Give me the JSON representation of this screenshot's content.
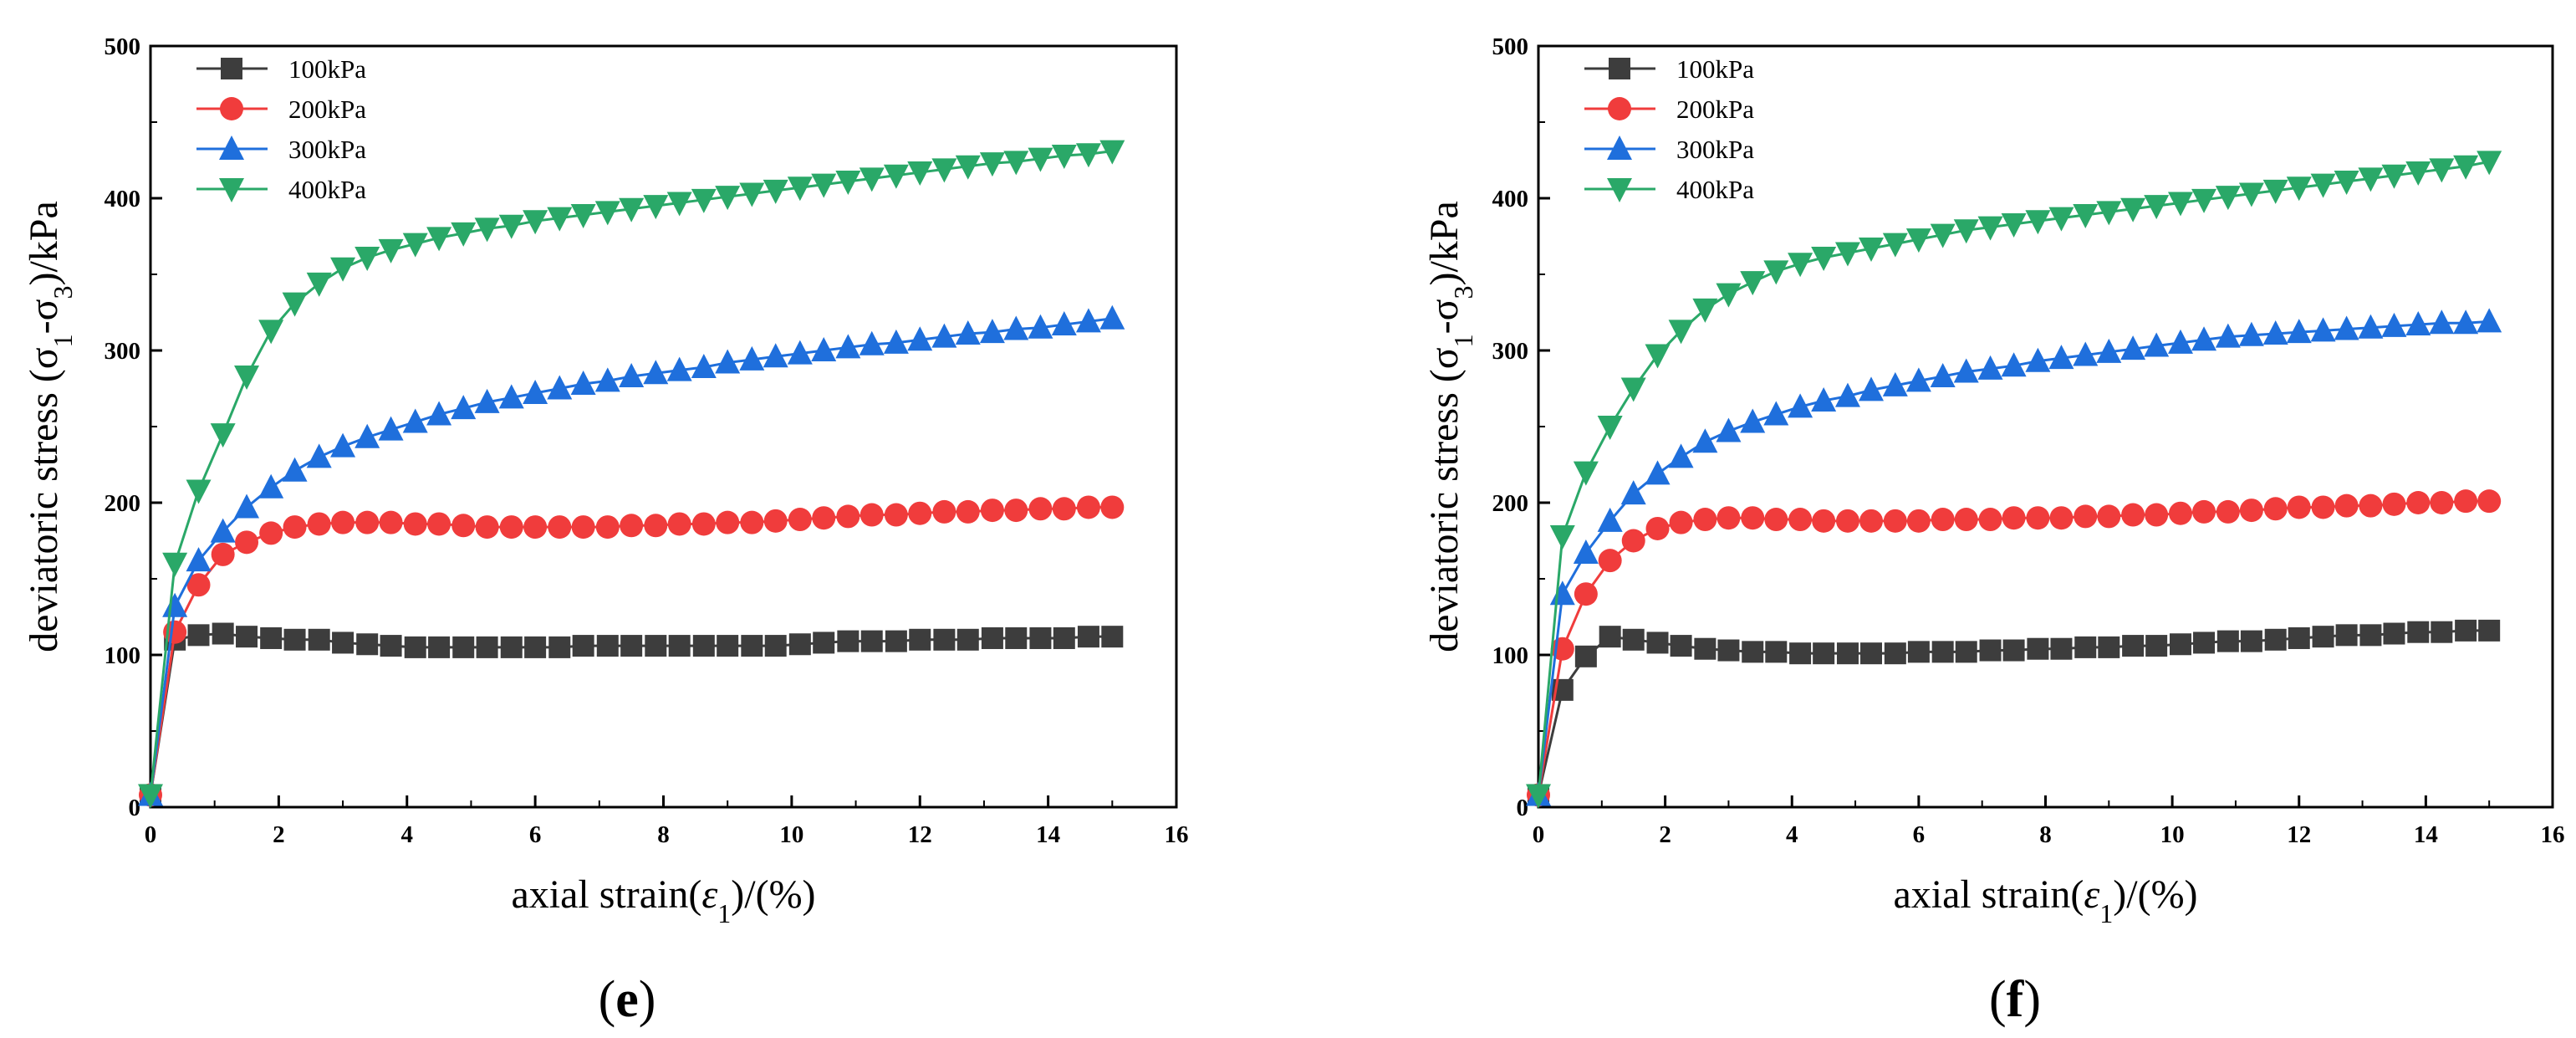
{
  "figure": {
    "series_styles": [
      {
        "color": "#3d3d3d",
        "marker": "square"
      },
      {
        "color": "#f03c3c",
        "marker": "circle"
      },
      {
        "color": "#1f6fdc",
        "marker": "triangle-up"
      },
      {
        "color": "#2aa868",
        "marker": "triangle-down"
      }
    ]
  },
  "chart_data": [
    {
      "type": "line",
      "panel_label": {
        "open": "(",
        "letter": "e",
        "close": ")"
      },
      "xlabel": {
        "prefix": "axial strain(",
        "symbol": "ε",
        "sub": "1",
        "suffix": ")/(%)"
      },
      "ylabel": {
        "prefix": "deviatoric stress (σ",
        "sub1": "1",
        "mid": "-σ",
        "sub2": "3",
        "suffix": ")/kPa"
      },
      "xlim": [
        0,
        16
      ],
      "ylim": [
        0,
        500
      ],
      "xticks": [
        0,
        2,
        4,
        6,
        8,
        10,
        12,
        14,
        16
      ],
      "yticks": [
        0,
        100,
        200,
        300,
        400,
        500
      ],
      "legend_position": "top-left",
      "series": [
        {
          "name": "100kPa",
          "x": [
            0,
            0.38,
            0.75,
            1.13,
            1.5,
            1.88,
            2.25,
            2.63,
            3,
            3.38,
            3.75,
            4.13,
            4.5,
            4.88,
            5.25,
            5.63,
            6,
            6.38,
            6.75,
            7.13,
            7.5,
            7.88,
            8.25,
            8.63,
            9,
            9.38,
            9.75,
            10.13,
            10.5,
            10.88,
            11.25,
            11.63,
            12,
            12.38,
            12.75,
            13.13,
            13.5,
            13.88,
            14.25,
            14.63,
            15
          ],
          "y": [
            8,
            110,
            113,
            114,
            112,
            111,
            110,
            110,
            108,
            107,
            106,
            105,
            105,
            105,
            105,
            105,
            105,
            105,
            106,
            106,
            106,
            106,
            106,
            106,
            106,
            106,
            106,
            107,
            108,
            109,
            109,
            109,
            110,
            110,
            110,
            111,
            111,
            111,
            111,
            112,
            112
          ]
        },
        {
          "name": "200kPa",
          "x": [
            0,
            0.38,
            0.75,
            1.13,
            1.5,
            1.88,
            2.25,
            2.63,
            3,
            3.38,
            3.75,
            4.13,
            4.5,
            4.88,
            5.25,
            5.63,
            6,
            6.38,
            6.75,
            7.13,
            7.5,
            7.88,
            8.25,
            8.63,
            9,
            9.38,
            9.75,
            10.13,
            10.5,
            10.88,
            11.25,
            11.63,
            12,
            12.38,
            12.75,
            13.13,
            13.5,
            13.88,
            14.25,
            14.63,
            15
          ],
          "y": [
            8,
            115,
            146,
            166,
            174,
            180,
            184,
            186,
            187,
            187,
            187,
            186,
            186,
            185,
            184,
            184,
            184,
            184,
            184,
            184,
            185,
            185,
            186,
            186,
            187,
            187,
            188,
            189,
            190,
            191,
            192,
            192,
            193,
            194,
            194,
            195,
            195,
            196,
            196,
            197,
            197
          ]
        },
        {
          "name": "300kPa",
          "x": [
            0,
            0.38,
            0.75,
            1.13,
            1.5,
            1.88,
            2.25,
            2.63,
            3,
            3.38,
            3.75,
            4.13,
            4.5,
            4.88,
            5.25,
            5.63,
            6,
            6.38,
            6.75,
            7.13,
            7.5,
            7.88,
            8.25,
            8.63,
            9,
            9.38,
            9.75,
            10.13,
            10.5,
            10.88,
            11.25,
            11.63,
            12,
            12.38,
            12.75,
            13.13,
            13.5,
            13.88,
            14.25,
            14.63,
            15
          ],
          "y": [
            8,
            132,
            162,
            181,
            197,
            210,
            221,
            230,
            237,
            243,
            248,
            253,
            258,
            262,
            266,
            269,
            272,
            275,
            278,
            280,
            283,
            285,
            287,
            289,
            292,
            294,
            296,
            298,
            300,
            302,
            304,
            305,
            307,
            309,
            311,
            312,
            314,
            315,
            317,
            319,
            321
          ]
        },
        {
          "name": "400kPa",
          "x": [
            0,
            0.38,
            0.75,
            1.13,
            1.5,
            1.88,
            2.25,
            2.63,
            3,
            3.38,
            3.75,
            4.13,
            4.5,
            4.88,
            5.25,
            5.63,
            6,
            6.38,
            6.75,
            7.13,
            7.5,
            7.88,
            8.25,
            8.63,
            9,
            9.38,
            9.75,
            10.13,
            10.5,
            10.88,
            11.25,
            11.63,
            12,
            12.38,
            12.75,
            13.13,
            13.5,
            13.88,
            14.25,
            14.63,
            15
          ],
          "y": [
            8,
            160,
            208,
            245,
            283,
            313,
            331,
            344,
            354,
            361,
            366,
            370,
            374,
            377,
            380,
            382,
            385,
            387,
            389,
            391,
            393,
            395,
            397,
            399,
            401,
            403,
            405,
            407,
            409,
            411,
            413,
            415,
            417,
            419,
            421,
            423,
            424,
            426,
            428,
            429,
            431
          ]
        }
      ]
    },
    {
      "type": "line",
      "panel_label": {
        "open": "(",
        "letter": "f",
        "close": ")"
      },
      "xlabel": {
        "prefix": "axial strain(",
        "symbol": "ε",
        "sub": "1",
        "suffix": ")/(%)"
      },
      "ylabel": {
        "prefix": "deviatoric stress (σ",
        "sub1": "1",
        "mid": "-σ",
        "sub2": "3",
        "suffix": ")/kPa"
      },
      "xlim": [
        0,
        16
      ],
      "ylim": [
        0,
        500
      ],
      "xticks": [
        0,
        2,
        4,
        6,
        8,
        10,
        12,
        14,
        16
      ],
      "yticks": [
        0,
        100,
        200,
        300,
        400,
        500
      ],
      "legend_position": "top-left",
      "series": [
        {
          "name": "100kPa",
          "x": [
            0,
            0.38,
            0.75,
            1.13,
            1.5,
            1.88,
            2.25,
            2.63,
            3,
            3.38,
            3.75,
            4.13,
            4.5,
            4.88,
            5.25,
            5.63,
            6,
            6.38,
            6.75,
            7.13,
            7.5,
            7.88,
            8.25,
            8.63,
            9,
            9.38,
            9.75,
            10.13,
            10.5,
            10.88,
            11.25,
            11.63,
            12,
            12.38,
            12.75,
            13.13,
            13.5,
            13.88,
            14.25,
            14.63,
            15
          ],
          "y": [
            8,
            77,
            99,
            112,
            110,
            108,
            106,
            104,
            103,
            102,
            102,
            101,
            101,
            101,
            101,
            101,
            102,
            102,
            102,
            103,
            103,
            104,
            104,
            105,
            105,
            106,
            106,
            107,
            108,
            109,
            109,
            110,
            111,
            112,
            113,
            113,
            114,
            115,
            115,
            116,
            116
          ]
        },
        {
          "name": "200kPa",
          "x": [
            0,
            0.38,
            0.75,
            1.13,
            1.5,
            1.88,
            2.25,
            2.63,
            3,
            3.38,
            3.75,
            4.13,
            4.5,
            4.88,
            5.25,
            5.63,
            6,
            6.38,
            6.75,
            7.13,
            7.5,
            7.88,
            8.25,
            8.63,
            9,
            9.38,
            9.75,
            10.13,
            10.5,
            10.88,
            11.25,
            11.63,
            12,
            12.38,
            12.75,
            13.13,
            13.5,
            13.88,
            14.25,
            14.63,
            15
          ],
          "y": [
            8,
            104,
            140,
            162,
            175,
            183,
            187,
            189,
            190,
            190,
            189,
            189,
            188,
            188,
            188,
            188,
            188,
            189,
            189,
            189,
            190,
            190,
            190,
            191,
            191,
            192,
            192,
            193,
            194,
            194,
            195,
            196,
            197,
            197,
            198,
            198,
            199,
            200,
            200,
            201,
            201
          ]
        },
        {
          "name": "300kPa",
          "x": [
            0,
            0.38,
            0.75,
            1.13,
            1.5,
            1.88,
            2.25,
            2.63,
            3,
            3.38,
            3.75,
            4.13,
            4.5,
            4.88,
            5.25,
            5.63,
            6,
            6.38,
            6.75,
            7.13,
            7.5,
            7.88,
            8.25,
            8.63,
            9,
            9.38,
            9.75,
            10.13,
            10.5,
            10.88,
            11.25,
            11.63,
            12,
            12.38,
            12.75,
            13.13,
            13.5,
            13.88,
            14.25,
            14.63,
            15
          ],
          "y": [
            8,
            140,
            167,
            188,
            206,
            219,
            230,
            240,
            247,
            253,
            258,
            263,
            267,
            270,
            274,
            277,
            280,
            283,
            286,
            288,
            290,
            293,
            295,
            297,
            299,
            301,
            303,
            305,
            307,
            309,
            310,
            311,
            312,
            313,
            314,
            315,
            316,
            317,
            318,
            318,
            319
          ]
        },
        {
          "name": "400kPa",
          "x": [
            0,
            0.38,
            0.75,
            1.13,
            1.5,
            1.88,
            2.25,
            2.63,
            3,
            3.38,
            3.75,
            4.13,
            4.5,
            4.88,
            5.25,
            5.63,
            6,
            6.38,
            6.75,
            7.13,
            7.5,
            7.88,
            8.25,
            8.63,
            9,
            9.38,
            9.75,
            10.13,
            10.5,
            10.88,
            11.25,
            11.63,
            12,
            12.38,
            12.75,
            13.13,
            13.5,
            13.88,
            14.25,
            14.63,
            15
          ],
          "y": [
            8,
            178,
            220,
            250,
            275,
            297,
            313,
            327,
            337,
            345,
            352,
            357,
            361,
            364,
            367,
            370,
            373,
            376,
            379,
            381,
            383,
            385,
            387,
            389,
            391,
            393,
            395,
            397,
            399,
            401,
            403,
            405,
            407,
            409,
            411,
            413,
            415,
            417,
            419,
            421,
            424
          ]
        }
      ]
    }
  ]
}
